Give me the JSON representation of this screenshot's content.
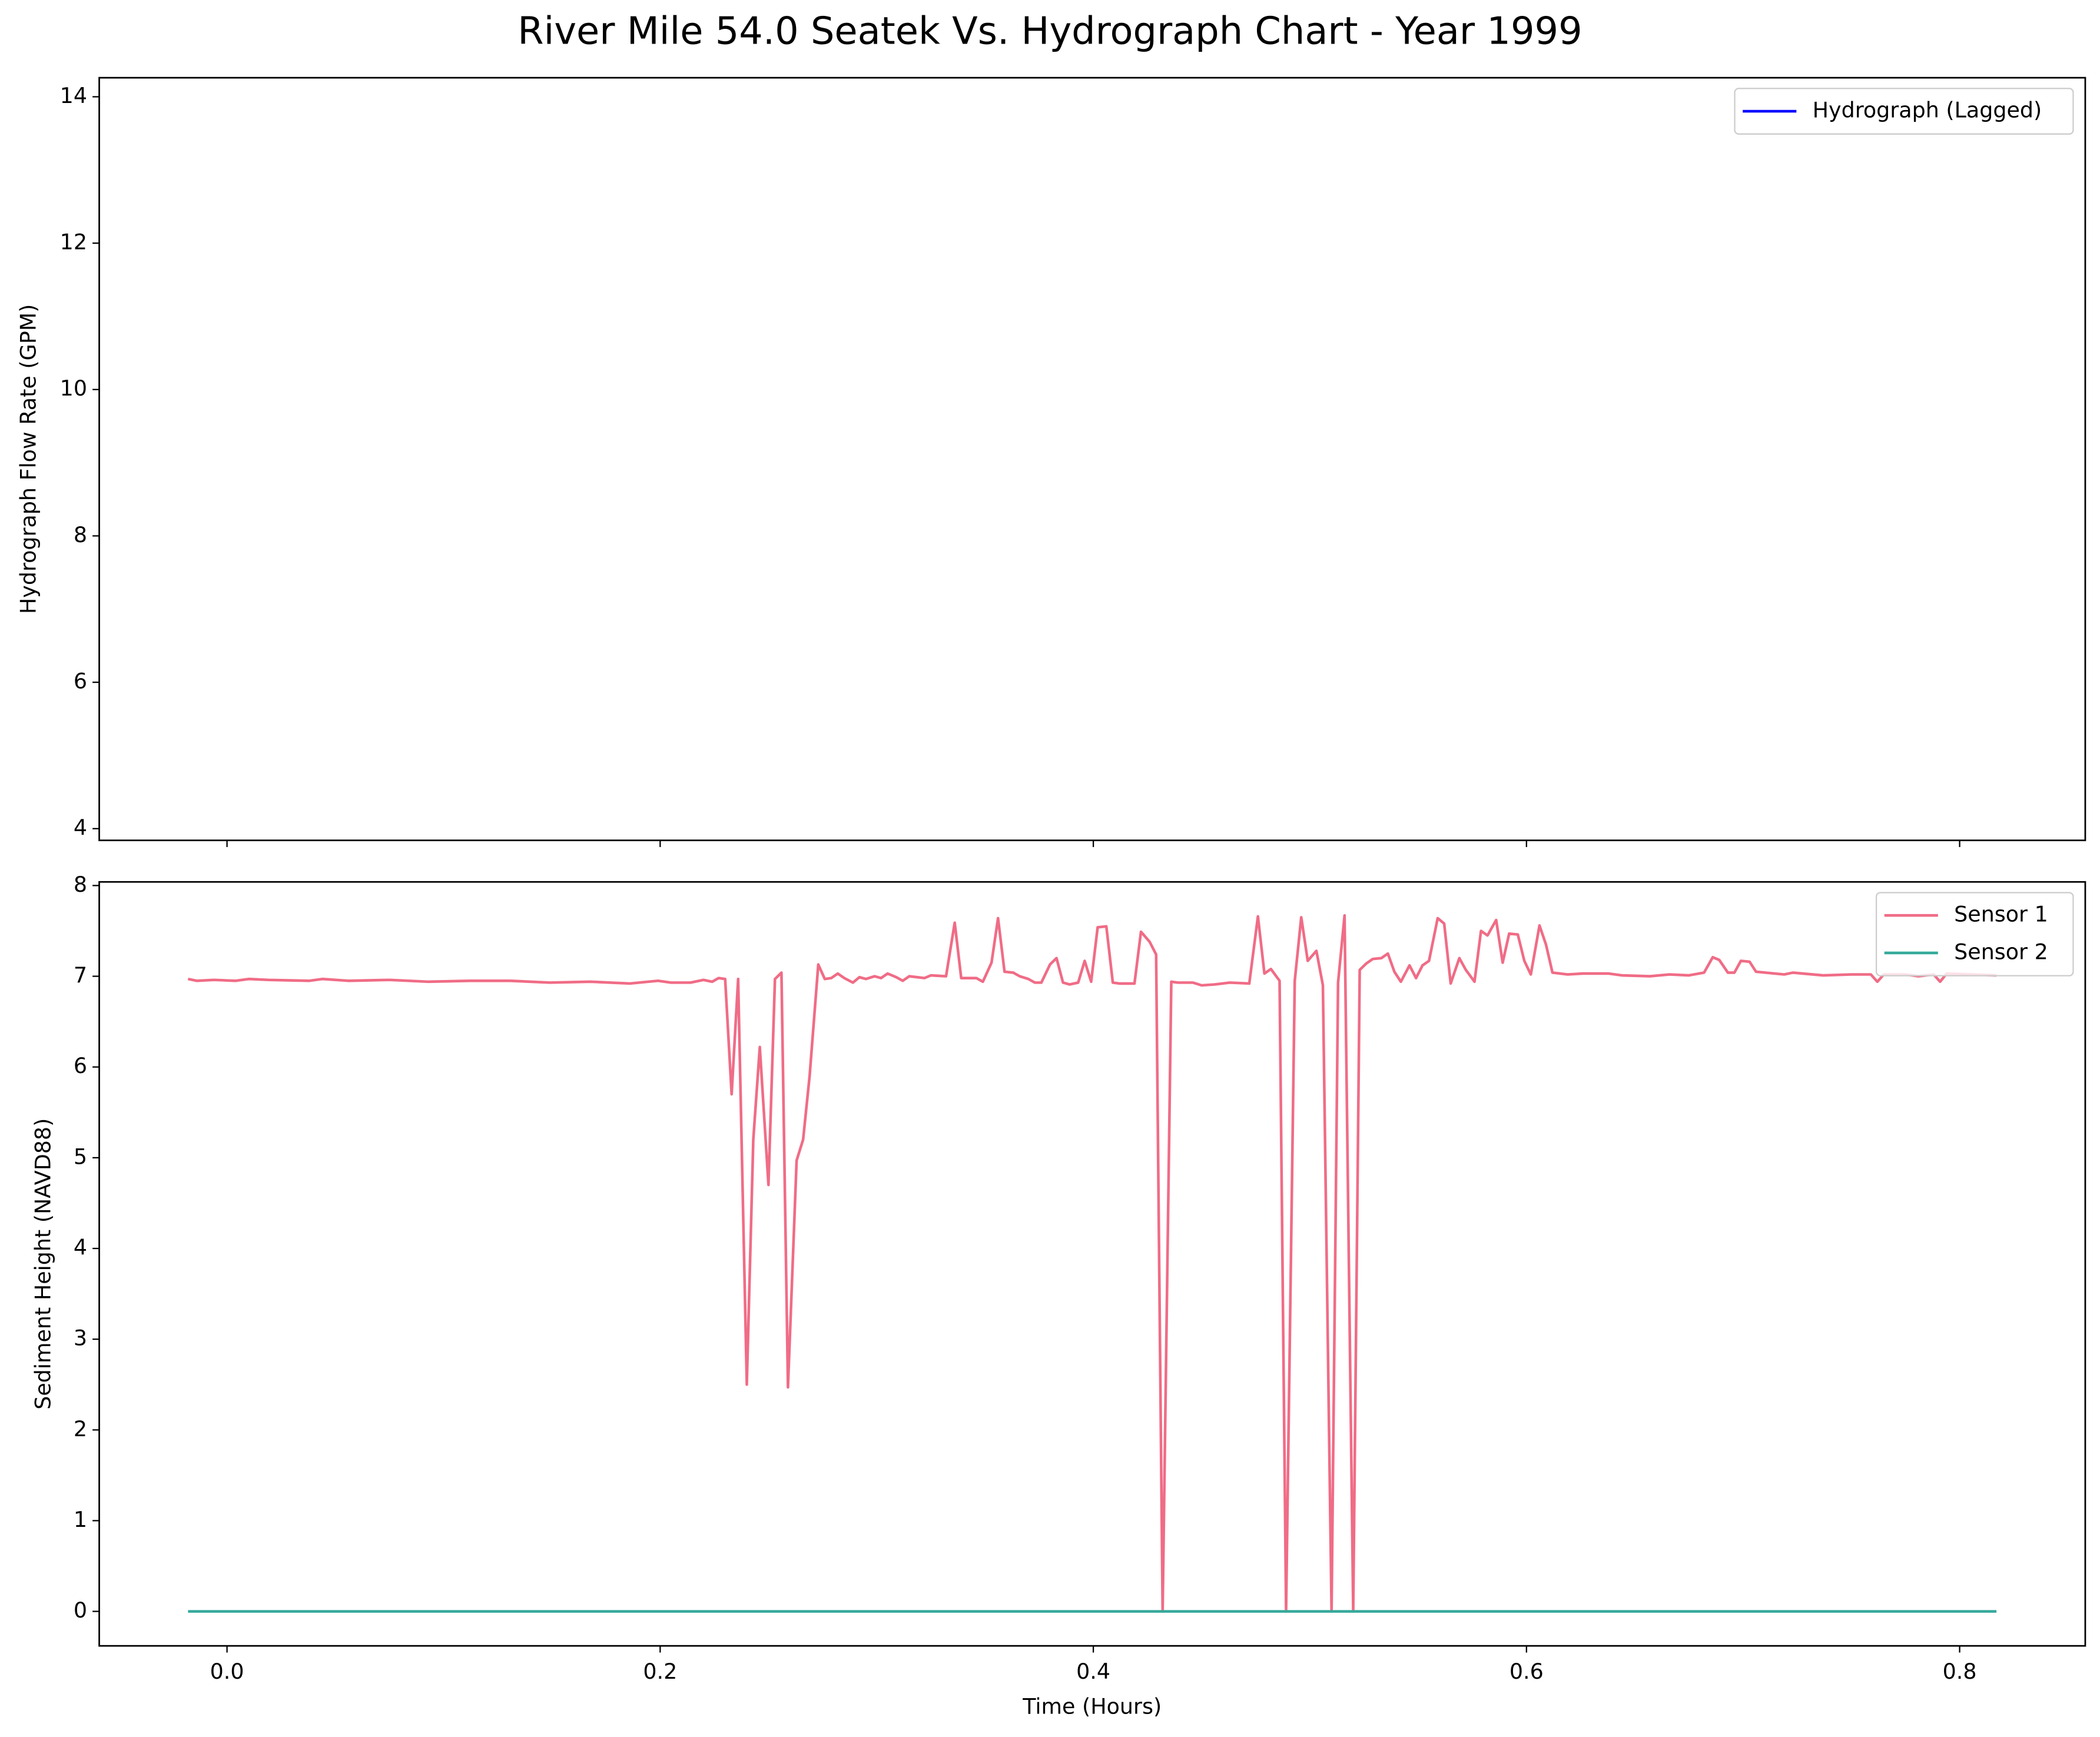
{
  "chart_data": [
    {
      "type": "line",
      "title": "River Mile 54.0 Seatek Vs. Hydrograph Chart - Year 1999",
      "ylabel": "Hydrograph Flow Rate (GPM)",
      "x": [],
      "series": [
        {
          "name": "Hydrograph (Lagged)",
          "color": "#0000ff",
          "values": []
        }
      ],
      "xlim": [
        -0.059,
        0.858
      ],
      "xticks": [
        0,
        0.2,
        0.4,
        0.6,
        0.8
      ],
      "x_tick_labels": false,
      "ylim": [
        3.84,
        14.26
      ],
      "yticks": [
        4,
        6,
        8,
        10,
        12,
        14
      ],
      "legend": "upper right"
    },
    {
      "type": "line",
      "xlabel": "Time (Hours)",
      "ylabel": "Sediment Height (NAVD88)",
      "x": [
        -0.018,
        -0.014,
        -0.006,
        0.004,
        0.01,
        0.019,
        0.038,
        0.044,
        0.056,
        0.075,
        0.093,
        0.112,
        0.131,
        0.149,
        0.168,
        0.186,
        0.199,
        0.205,
        0.214,
        0.22,
        0.224,
        0.227,
        0.23,
        0.233,
        0.236,
        0.24,
        0.243,
        0.246,
        0.25,
        0.253,
        0.256,
        0.259,
        0.263,
        0.266,
        0.269,
        0.273,
        0.276,
        0.279,
        0.282,
        0.285,
        0.289,
        0.292,
        0.295,
        0.299,
        0.302,
        0.305,
        0.309,
        0.312,
        0.315,
        0.322,
        0.325,
        0.332,
        0.336,
        0.339,
        0.346,
        0.349,
        0.353,
        0.356,
        0.359,
        0.363,
        0.366,
        0.37,
        0.373,
        0.376,
        0.38,
        0.383,
        0.386,
        0.389,
        0.393,
        0.396,
        0.399,
        0.402,
        0.406,
        0.409,
        0.412,
        0.419,
        0.422,
        0.426,
        0.429,
        0.432,
        0.436,
        0.439,
        0.446,
        0.45,
        0.456,
        0.463,
        0.472,
        0.476,
        0.479,
        0.482,
        0.486,
        0.489,
        0.493,
        0.496,
        0.499,
        0.503,
        0.506,
        0.51,
        0.513,
        0.516,
        0.52,
        0.523,
        0.526,
        0.529,
        0.533,
        0.536,
        0.539,
        0.542,
        0.546,
        0.549,
        0.552,
        0.555,
        0.559,
        0.562,
        0.565,
        0.569,
        0.572,
        0.576,
        0.579,
        0.582,
        0.586,
        0.589,
        0.592,
        0.596,
        0.599,
        0.602,
        0.606,
        0.609,
        0.612,
        0.619,
        0.626,
        0.638,
        0.644,
        0.657,
        0.666,
        0.675,
        0.682,
        0.686,
        0.689,
        0.693,
        0.696,
        0.699,
        0.703,
        0.706,
        0.719,
        0.723,
        0.737,
        0.75,
        0.759,
        0.762,
        0.765,
        0.775,
        0.781,
        0.788,
        0.791,
        0.794,
        0.806,
        0.817
      ],
      "series": [
        {
          "name": "Sensor 1",
          "color": "#f06c86",
          "values": [
            6.97,
            6.95,
            6.96,
            6.95,
            6.97,
            6.96,
            6.95,
            6.97,
            6.95,
            6.96,
            6.94,
            6.95,
            6.95,
            6.93,
            6.94,
            6.92,
            6.95,
            6.93,
            6.93,
            6.96,
            6.94,
            6.98,
            6.97,
            5.7,
            6.97,
            2.5,
            5.2,
            6.22,
            4.7,
            6.97,
            7.04,
            2.47,
            4.97,
            5.2,
            5.9,
            7.13,
            6.97,
            6.98,
            7.03,
            6.98,
            6.93,
            6.99,
            6.97,
            7.0,
            6.98,
            7.03,
            6.99,
            6.95,
            7.0,
            6.98,
            7.01,
            7.0,
            7.59,
            6.98,
            6.98,
            6.94,
            7.15,
            7.64,
            7.05,
            7.04,
            7.0,
            6.97,
            6.93,
            6.93,
            7.13,
            7.2,
            6.93,
            6.91,
            6.93,
            7.17,
            6.94,
            7.54,
            7.55,
            6.93,
            6.92,
            6.92,
            7.49,
            7.38,
            7.24,
            0.0,
            6.94,
            6.93,
            6.93,
            6.9,
            6.91,
            6.93,
            6.92,
            7.66,
            7.03,
            7.08,
            6.95,
            0.0,
            6.95,
            7.65,
            7.17,
            7.28,
            6.9,
            0.0,
            6.93,
            7.67,
            0.0,
            7.07,
            7.14,
            7.19,
            7.2,
            7.25,
            7.05,
            6.94,
            7.12,
            6.98,
            7.12,
            7.17,
            7.64,
            7.58,
            6.92,
            7.2,
            7.07,
            6.94,
            7.5,
            7.45,
            7.62,
            7.15,
            7.47,
            7.46,
            7.17,
            7.02,
            7.56,
            7.35,
            7.04,
            7.02,
            7.03,
            7.03,
            7.01,
            7.0,
            7.02,
            7.01,
            7.04,
            7.21,
            7.18,
            7.04,
            7.04,
            7.17,
            7.16,
            7.05,
            7.02,
            7.04,
            7.01,
            7.02,
            7.02,
            6.94,
            7.02,
            7.02,
            7.0,
            7.02,
            6.94,
            7.03,
            7.02,
            7.01
          ]
        },
        {
          "name": "Sensor 2",
          "color": "#35a99b",
          "values": [
            0,
            0,
            0,
            0,
            0,
            0,
            0,
            0,
            0,
            0,
            0,
            0,
            0,
            0,
            0,
            0,
            0,
            0,
            0,
            0,
            0,
            0,
            0,
            0,
            0,
            0,
            0,
            0,
            0,
            0,
            0,
            0,
            0,
            0,
            0,
            0,
            0,
            0,
            0,
            0,
            0,
            0,
            0,
            0,
            0,
            0,
            0,
            0,
            0,
            0,
            0,
            0,
            0,
            0,
            0,
            0,
            0,
            0,
            0,
            0,
            0,
            0,
            0,
            0,
            0,
            0,
            0,
            0,
            0,
            0,
            0,
            0,
            0,
            0,
            0,
            0,
            0,
            0,
            0,
            0,
            0,
            0,
            0,
            0,
            0,
            0,
            0,
            0,
            0,
            0,
            0,
            0,
            0,
            0,
            0,
            0,
            0,
            0,
            0,
            0,
            0,
            0,
            0,
            0,
            0,
            0,
            0,
            0,
            0,
            0,
            0,
            0,
            0,
            0,
            0,
            0,
            0,
            0,
            0,
            0,
            0,
            0,
            0,
            0,
            0,
            0,
            0,
            0,
            0,
            0,
            0,
            0,
            0,
            0,
            0,
            0,
            0,
            0,
            0,
            0,
            0,
            0,
            0,
            0,
            0,
            0,
            0,
            0,
            0,
            0,
            0,
            0,
            0,
            0,
            0,
            0,
            0,
            0
          ]
        }
      ],
      "xlim": [
        -0.059,
        0.858
      ],
      "xticks": [
        {
          "value": 0,
          "label": "0.0"
        },
        0.2,
        0.4,
        0.6,
        0.8
      ],
      "x_tick_labels": true,
      "ylim": [
        -0.38,
        8.04
      ],
      "yticks": [
        0,
        1,
        2,
        3,
        4,
        5,
        6,
        7,
        8
      ],
      "legend": "upper right"
    }
  ]
}
